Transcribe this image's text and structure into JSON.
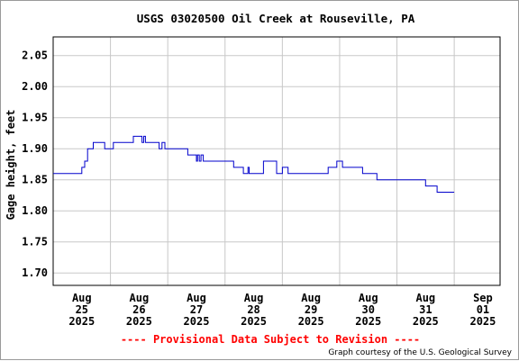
{
  "chart_data": {
    "type": "line",
    "title": "USGS 03020500 Oil Creek at Rouseville, PA",
    "ylabel": "Gage height, feet",
    "xlabel": "",
    "ylim": [
      1.68,
      2.08
    ],
    "xlim": [
      0,
      7.8
    ],
    "y_ticks": [
      "1.70",
      "1.75",
      "1.80",
      "1.85",
      "1.90",
      "1.95",
      "2.00",
      "2.05"
    ],
    "x_ticks": [
      {
        "label": [
          "Aug",
          "25",
          "2025"
        ]
      },
      {
        "label": [
          "Aug",
          "26",
          "2025"
        ]
      },
      {
        "label": [
          "Aug",
          "27",
          "2025"
        ]
      },
      {
        "label": [
          "Aug",
          "28",
          "2025"
        ]
      },
      {
        "label": [
          "Aug",
          "29",
          "2025"
        ]
      },
      {
        "label": [
          "Aug",
          "30",
          "2025"
        ]
      },
      {
        "label": [
          "Aug",
          "31",
          "2025"
        ]
      },
      {
        "label": [
          "Sep",
          "01",
          "2025"
        ]
      }
    ],
    "x_unit_note": "x values are days since Aug 25 2025 00:00",
    "grid": true,
    "line_color": "#0000cc",
    "series": [
      {
        "name": "Gage height",
        "x": [
          0.0,
          0.5,
          0.5,
          0.55,
          0.55,
          0.6,
          0.6,
          0.7,
          0.7,
          0.9,
          0.9,
          1.05,
          1.05,
          1.4,
          1.4,
          1.55,
          1.55,
          1.58,
          1.58,
          1.61,
          1.61,
          1.64,
          1.64,
          1.67,
          1.67,
          1.85,
          1.85,
          1.9,
          1.9,
          1.95,
          1.95,
          2.35,
          2.35,
          2.5,
          2.5,
          2.52,
          2.52,
          2.55,
          2.55,
          2.58,
          2.58,
          2.62,
          2.62,
          3.15,
          3.15,
          3.32,
          3.32,
          3.4,
          3.4,
          3.42,
          3.42,
          3.45,
          3.45,
          3.67,
          3.67,
          3.9,
          3.9,
          4.0,
          4.0,
          4.1,
          4.1,
          4.2,
          4.2,
          4.8,
          4.8,
          4.95,
          4.95,
          5.05,
          5.05,
          5.4,
          5.4,
          5.65,
          5.65,
          6.5,
          6.5,
          6.7,
          6.7,
          7.0
        ],
        "y": [
          1.86,
          1.86,
          1.87,
          1.87,
          1.88,
          1.88,
          1.9,
          1.9,
          1.91,
          1.91,
          1.9,
          1.9,
          1.91,
          1.91,
          1.92,
          1.92,
          1.91,
          1.91,
          1.92,
          1.92,
          1.91,
          1.91,
          1.91,
          1.91,
          1.91,
          1.91,
          1.9,
          1.9,
          1.91,
          1.91,
          1.9,
          1.9,
          1.89,
          1.89,
          1.88,
          1.88,
          1.89,
          1.89,
          1.88,
          1.88,
          1.89,
          1.89,
          1.88,
          1.88,
          1.87,
          1.87,
          1.86,
          1.86,
          1.87,
          1.87,
          1.86,
          1.86,
          1.86,
          1.86,
          1.88,
          1.88,
          1.86,
          1.86,
          1.87,
          1.87,
          1.86,
          1.86,
          1.86,
          1.86,
          1.87,
          1.87,
          1.88,
          1.88,
          1.87,
          1.87,
          1.86,
          1.86,
          1.85,
          1.85,
          1.84,
          1.84,
          1.83,
          1.83
        ]
      }
    ]
  },
  "footer": {
    "provisional": "---- Provisional Data Subject to Revision ----",
    "credit": "Graph courtesy of the U.S. Geological Survey"
  }
}
